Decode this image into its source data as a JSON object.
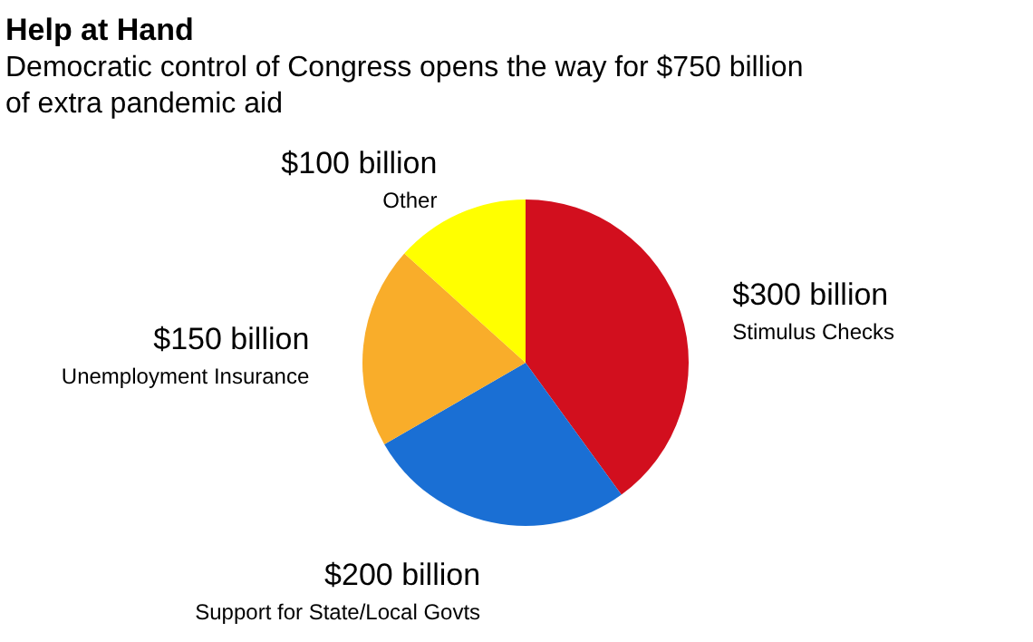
{
  "chart_data": {
    "type": "pie",
    "title": "Help at Hand",
    "subtitle": "Democratic control of Congress opens the way for $750 billion of extra pandemic aid",
    "categories": [
      "Stimulus Checks",
      "Support for State/Local Govts",
      "Unemployment Insurance",
      "Other"
    ],
    "values": [
      300,
      200,
      150,
      100
    ],
    "colors": [
      "#d20f1e",
      "#1a6fd4",
      "#f9ad2a",
      "#ffff00"
    ],
    "value_labels": [
      "$300 billion",
      "$200 billion",
      "$150 billion",
      "$100 billion"
    ],
    "legend": false
  }
}
